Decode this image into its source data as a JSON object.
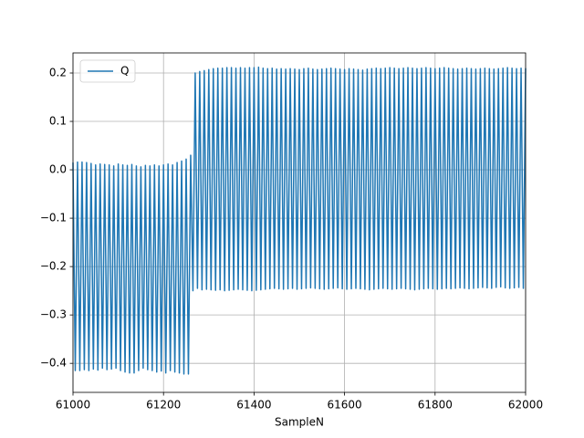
{
  "chart_data": {
    "type": "line",
    "xlabel": "SampleN",
    "xlim": [
      61000,
      62000
    ],
    "xticks": [
      61000,
      61200,
      61400,
      61600,
      61800,
      62000
    ],
    "ylim": [
      -0.46,
      0.2415
    ],
    "yticks": [
      {
        "value": -0.4,
        "label": "−0.4"
      },
      {
        "value": -0.3,
        "label": "−0.3"
      },
      {
        "value": -0.2,
        "label": "−0.2"
      },
      {
        "value": -0.1,
        "label": "−0.1"
      },
      {
        "value": 0,
        "label": "0.0"
      },
      0.1,
      0.2
    ],
    "grid": true,
    "legend": "upper left",
    "x": [
      61000,
      61005,
      61010,
      61015,
      61020,
      61025,
      61030,
      61035,
      61040,
      61045,
      61050,
      61055,
      61060,
      61065,
      61070,
      61075,
      61080,
      61085,
      61090,
      61095,
      61100,
      61105,
      61110,
      61115,
      61120,
      61125,
      61130,
      61135,
      61140,
      61145,
      61150,
      61155,
      61160,
      61165,
      61170,
      61175,
      61180,
      61185,
      61190,
      61195,
      61200,
      61205,
      61210,
      61215,
      61220,
      61225,
      61230,
      61235,
      61240,
      61245,
      61250,
      61255,
      61260,
      61265,
      61270,
      61275,
      61280,
      61285,
      61290,
      61295,
      61300,
      61305,
      61310,
      61315,
      61320,
      61325,
      61330,
      61335,
      61340,
      61345,
      61350,
      61355,
      61360,
      61365,
      61370,
      61375,
      61380,
      61385,
      61390,
      61395,
      61400,
      61405,
      61410,
      61415,
      61420,
      61425,
      61430,
      61435,
      61440,
      61445,
      61450,
      61455,
      61460,
      61465,
      61470,
      61475,
      61480,
      61485,
      61490,
      61495,
      61500,
      61505,
      61510,
      61515,
      61520,
      61525,
      61530,
      61535,
      61540,
      61545,
      61550,
      61555,
      61560,
      61565,
      61570,
      61575,
      61580,
      61585,
      61590,
      61595,
      61600,
      61605,
      61610,
      61615,
      61620,
      61625,
      61630,
      61635,
      61640,
      61645,
      61650,
      61655,
      61660,
      61665,
      61670,
      61675,
      61680,
      61685,
      61690,
      61695,
      61700,
      61705,
      61710,
      61715,
      61720,
      61725,
      61730,
      61735,
      61740,
      61745,
      61750,
      61755,
      61760,
      61765,
      61770,
      61775,
      61780,
      61785,
      61790,
      61795,
      61800,
      61805,
      61810,
      61815,
      61820,
      61825,
      61830,
      61835,
      61840,
      61845,
      61850,
      61855,
      61860,
      61865,
      61870,
      61875,
      61880,
      61885,
      61890,
      61895,
      61900,
      61905,
      61910,
      61915,
      61920,
      61925,
      61930,
      61935,
      61940,
      61945,
      61950,
      61955,
      61960,
      61965,
      61970,
      61975,
      61980,
      61985,
      61990,
      61995,
      62000
    ],
    "series": [
      {
        "name": "Q",
        "color": "#1f77b4",
        "values": [
          0.015,
          -0.415,
          0.016,
          -0.415,
          0.016,
          -0.413,
          0.015,
          -0.415,
          0.013,
          -0.412,
          0.01,
          -0.414,
          0.012,
          -0.41,
          0.011,
          -0.413,
          0.01,
          -0.412,
          0.008,
          -0.41,
          0.012,
          -0.415,
          0.01,
          -0.418,
          0.009,
          -0.42,
          0.011,
          -0.42,
          0.008,
          -0.415,
          0.006,
          -0.41,
          0.009,
          -0.413,
          0.008,
          -0.415,
          0.01,
          -0.418,
          0.008,
          -0.416,
          0.01,
          -0.42,
          0.012,
          -0.415,
          0.01,
          -0.418,
          0.015,
          -0.42,
          0.018,
          -0.422,
          0.022,
          -0.422,
          0.03,
          -0.25,
          0.2,
          -0.245,
          0.203,
          -0.248,
          0.205,
          -0.247,
          0.207,
          -0.248,
          0.209,
          -0.249,
          0.21,
          -0.248,
          0.21,
          -0.25,
          0.211,
          -0.249,
          0.211,
          -0.248,
          0.21,
          -0.247,
          0.211,
          -0.248,
          0.21,
          -0.249,
          0.211,
          -0.25,
          0.211,
          -0.249,
          0.212,
          -0.248,
          0.21,
          -0.247,
          0.209,
          -0.246,
          0.21,
          -0.245,
          0.208,
          -0.246,
          0.209,
          -0.247,
          0.208,
          -0.246,
          0.209,
          -0.245,
          0.208,
          -0.247,
          0.207,
          -0.246,
          0.209,
          -0.245,
          0.21,
          -0.244,
          0.208,
          -0.245,
          0.207,
          -0.246,
          0.208,
          -0.247,
          0.209,
          -0.246,
          0.21,
          -0.245,
          0.209,
          -0.244,
          0.208,
          -0.246,
          0.207,
          -0.247,
          0.209,
          -0.246,
          0.208,
          -0.245,
          0.207,
          -0.246,
          0.206,
          -0.247,
          0.208,
          -0.248,
          0.209,
          -0.247,
          0.21,
          -0.246,
          0.209,
          -0.245,
          0.21,
          -0.246,
          0.211,
          -0.247,
          0.21,
          -0.246,
          0.209,
          -0.245,
          0.21,
          -0.246,
          0.211,
          -0.247,
          0.21,
          -0.248,
          0.209,
          -0.247,
          0.21,
          -0.246,
          0.211,
          -0.245,
          0.21,
          -0.246,
          0.209,
          -0.247,
          0.21,
          -0.246,
          0.211,
          -0.245,
          0.21,
          -0.246,
          0.209,
          -0.245,
          0.208,
          -0.244,
          0.209,
          -0.245,
          0.21,
          -0.246,
          0.209,
          -0.245,
          0.208,
          -0.244,
          0.209,
          -0.243,
          0.21,
          -0.244,
          0.209,
          -0.245,
          0.208,
          -0.243,
          0.209,
          -0.242,
          0.21,
          -0.244,
          0.211,
          -0.245,
          0.21,
          -0.244,
          0.209,
          -0.243,
          0.21,
          -0.245,
          0.21
        ]
      }
    ]
  }
}
